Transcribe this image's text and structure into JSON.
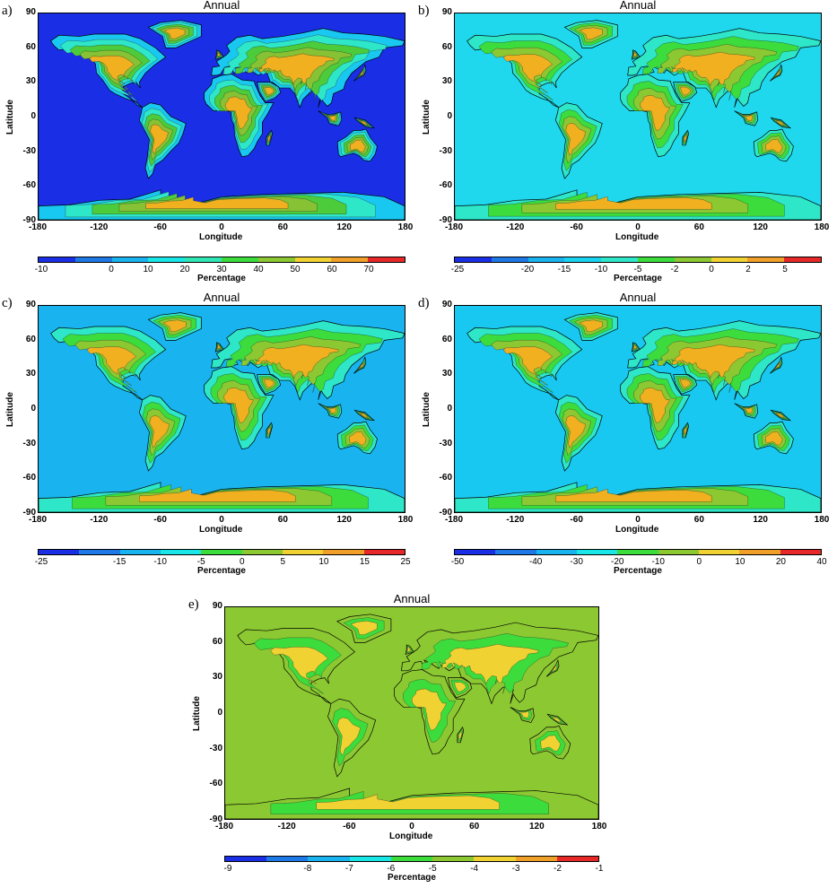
{
  "panels": [
    {
      "letter": "a)",
      "title": "Annual",
      "ocean_color": "#1a2ee6",
      "land_colors": [
        "#19c8f0",
        "#2ee6c8",
        "#4ccc3a",
        "#86c234",
        "#f0b020"
      ],
      "colorbar": {
        "colors": [
          "#1a2ee6",
          "#1e78e6",
          "#19b4f0",
          "#19e6e6",
          "#2ee6b4",
          "#3cdc3c",
          "#8cc832",
          "#f0d232",
          "#f0a028",
          "#e62828"
        ],
        "ticks": [
          "-10",
          "0",
          "10",
          "20",
          "30",
          "40",
          "50",
          "60",
          "70"
        ],
        "label": "Percentage"
      }
    },
    {
      "letter": "b)",
      "title": "Annual",
      "ocean_color": "#1fd8ee",
      "land_colors": [
        "#2ee6c8",
        "#3cdc3c",
        "#8cc832",
        "#f0b020"
      ],
      "colorbar": {
        "colors": [
          "#1a2ee6",
          "#1e78e6",
          "#19b4f0",
          "#19d2f0",
          "#2ee6c8",
          "#3cdc3c",
          "#8cc832",
          "#f0d232",
          "#f0a028",
          "#e62828"
        ],
        "ticks": [
          "-25",
          "-20",
          "-15",
          "-10",
          "-5",
          "-2",
          "0",
          "2",
          "5"
        ],
        "label": "Percentage"
      }
    },
    {
      "letter": "c)",
      "title": "Annual",
      "ocean_color": "#19b4f0",
      "land_colors": [
        "#2ee6c8",
        "#3cdc3c",
        "#8cc832",
        "#f0b020"
      ],
      "colorbar": {
        "colors": [
          "#1a2ee6",
          "#1e78e6",
          "#19b4f0",
          "#19e6e6",
          "#3cdc3c",
          "#8cc832",
          "#f0d232",
          "#f0a028",
          "#e62828"
        ],
        "ticks": [
          "-25",
          "-15",
          "-10",
          "-5",
          "0",
          "5",
          "10",
          "15",
          "25"
        ],
        "label": "Percentage"
      }
    },
    {
      "letter": "d)",
      "title": "Annual",
      "ocean_color": "#19c8f0",
      "land_colors": [
        "#2ee6c8",
        "#3cdc3c",
        "#8cc832",
        "#f0b020"
      ],
      "colorbar": {
        "colors": [
          "#1a2ee6",
          "#1e78e6",
          "#19b4f0",
          "#19e6e6",
          "#3cdc3c",
          "#8cc832",
          "#f0d232",
          "#f0a028",
          "#e62828"
        ],
        "ticks": [
          "-50",
          "-40",
          "-30",
          "-20",
          "-10",
          "0",
          "10",
          "20",
          "40"
        ],
        "label": "Percentage"
      }
    },
    {
      "letter": "e)",
      "title": "Annual",
      "ocean_color": "#8cc832",
      "land_colors": [
        "#8cc832",
        "#3cdc3c",
        "#f0d232"
      ],
      "colorbar": {
        "colors": [
          "#1a2ee6",
          "#1e78e6",
          "#19b4f0",
          "#19e6e6",
          "#3cdc3c",
          "#8cc832",
          "#f0d232",
          "#f0a028",
          "#e62828"
        ],
        "ticks": [
          "-9",
          "-8",
          "-7",
          "-6",
          "-5",
          "-4",
          "-3",
          "-2",
          "-1"
        ],
        "label": "Percentage"
      }
    }
  ],
  "axes": {
    "x_ticks": [
      "-180",
      "-120",
      "-60",
      "0",
      "60",
      "120",
      "180"
    ],
    "y_ticks": [
      "90",
      "60",
      "30",
      "0",
      "-30",
      "-60",
      "-90"
    ],
    "xlabel": "Longitude",
    "ylabel": "Latitude"
  }
}
